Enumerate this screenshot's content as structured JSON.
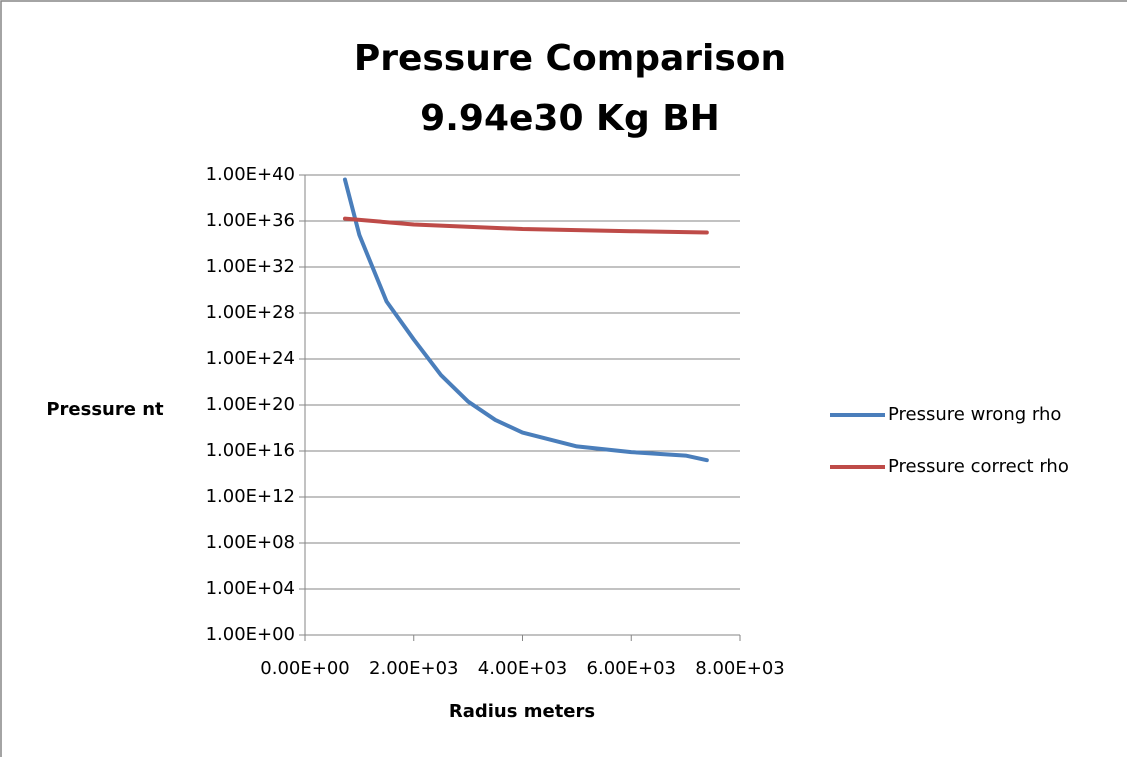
{
  "chart_data": {
    "type": "line",
    "title": [
      "Pressure Comparison",
      "9.94e30 Kg BH"
    ],
    "y_label": "Pressure nt",
    "x_label": "Radius meters",
    "log_y": true,
    "grid": true,
    "legend": "right",
    "xlim": [
      0,
      8000
    ],
    "xticks": [
      {
        "value": 0,
        "label": "0.00E+00"
      },
      {
        "value": 2000,
        "label": "2.00E+03"
      },
      {
        "value": 4000,
        "label": "4.00E+03"
      },
      {
        "value": 6000,
        "label": "6.00E+03"
      },
      {
        "value": 8000,
        "label": "8.00E+03"
      }
    ],
    "ylim": [
      1,
      1e+40
    ],
    "yticks": [
      {
        "value": 1,
        "label": "1.00E+00"
      },
      {
        "value": 10000.0,
        "label": "1.00E+04"
      },
      {
        "value": 100000000.0,
        "label": "1.00E+08"
      },
      {
        "value": 1000000000000.0,
        "label": "1.00E+12"
      },
      {
        "value": 1e+16,
        "label": "1.00E+16"
      },
      {
        "value": 1e+20,
        "label": "1.00E+20"
      },
      {
        "value": 1e+24,
        "label": "1.00E+24"
      },
      {
        "value": 1e+28,
        "label": "1.00E+28"
      },
      {
        "value": 1e+32,
        "label": "1.00E+32"
      },
      {
        "value": 1e+36,
        "label": "1.00E+36"
      },
      {
        "value": 1e+40,
        "label": "1.00E+40"
      }
    ],
    "series": [
      {
        "name": "Pressure wrong rho",
        "color": "#4a7ebb",
        "x": [
          735,
          1000,
          1500,
          2000,
          2500,
          3000,
          3500,
          4000,
          5000,
          6000,
          7000,
          7390
        ],
        "values": [
          4e+39,
          6e+34,
          1e+29,
          5e+25,
          4e+22,
          2e+20,
          5e+18,
          4e+17,
          2.5e+16,
          8000000000000000.0,
          4000000000000000.0,
          1600000000000000.0
        ]
      },
      {
        "name": "Pressure correct rho",
        "color": "#be4b48",
        "x": [
          735,
          2000,
          4000,
          6000,
          7390
        ],
        "values": [
          1.6e+36,
          5e+35,
          2e+35,
          1.3e+35,
          1e+35
        ]
      }
    ]
  }
}
